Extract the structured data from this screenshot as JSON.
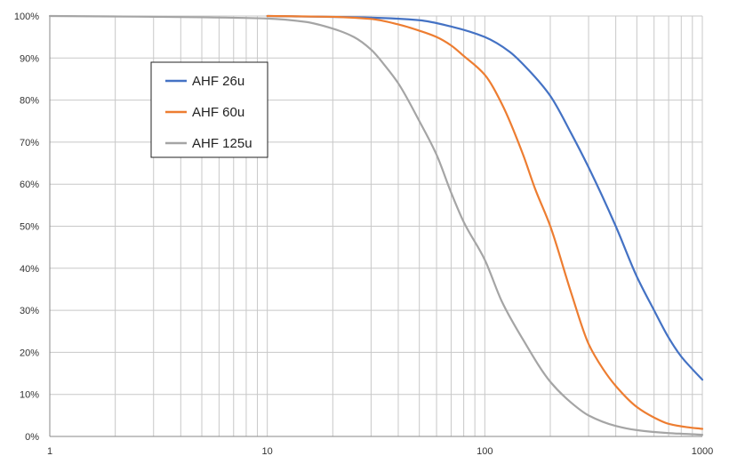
{
  "chart_data": {
    "type": "line",
    "title": "",
    "xlabel": "",
    "ylabel": "",
    "x_scale": "log",
    "xlim": [
      1,
      1000
    ],
    "ylim": [
      0,
      100
    ],
    "grid": true,
    "legend_position": "top-left",
    "x_ticks": [
      {
        "value": 1,
        "label": "1"
      },
      {
        "value": 10,
        "label": "10"
      },
      {
        "value": 100,
        "label": "100"
      },
      {
        "value": 1000,
        "label": "1000"
      }
    ],
    "y_ticks": [
      {
        "value": 0,
        "label": "0%"
      },
      {
        "value": 10,
        "label": "10%"
      },
      {
        "value": 20,
        "label": "20%"
      },
      {
        "value": 30,
        "label": "30%"
      },
      {
        "value": 40,
        "label": "40%"
      },
      {
        "value": 50,
        "label": "50%"
      },
      {
        "value": 60,
        "label": "60%"
      },
      {
        "value": 70,
        "label": "70%"
      },
      {
        "value": 80,
        "label": "80%"
      },
      {
        "value": 90,
        "label": "90%"
      },
      {
        "value": 100,
        "label": "100%"
      }
    ],
    "series": [
      {
        "name": "AHF 26u",
        "color": "#4472C4",
        "points": [
          [
            10,
            100
          ],
          [
            30,
            99.6
          ],
          [
            50,
            99
          ],
          [
            70,
            97.5
          ],
          [
            100,
            95
          ],
          [
            130,
            91.5
          ],
          [
            160,
            87
          ],
          [
            200,
            81
          ],
          [
            250,
            72
          ],
          [
            300,
            64
          ],
          [
            400,
            50
          ],
          [
            500,
            38
          ],
          [
            600,
            30
          ],
          [
            700,
            23.5
          ],
          [
            800,
            19
          ],
          [
            900,
            16
          ],
          [
            1000,
            13.5
          ]
        ]
      },
      {
        "name": "AHF 60u",
        "color": "#ED7D31",
        "points": [
          [
            10,
            100
          ],
          [
            20,
            99.8
          ],
          [
            30,
            99.3
          ],
          [
            40,
            98
          ],
          [
            50,
            96.5
          ],
          [
            60,
            95
          ],
          [
            70,
            93
          ],
          [
            80,
            90.5
          ],
          [
            100,
            86
          ],
          [
            120,
            79
          ],
          [
            150,
            67
          ],
          [
            170,
            59
          ],
          [
            200,
            50
          ],
          [
            250,
            34
          ],
          [
            300,
            22
          ],
          [
            350,
            16
          ],
          [
            400,
            12
          ],
          [
            500,
            7
          ],
          [
            600,
            4.5
          ],
          [
            700,
            3
          ],
          [
            850,
            2.2
          ],
          [
            1000,
            1.8
          ]
        ]
      },
      {
        "name": "AHF 125u",
        "color": "#A5A5A5",
        "points": [
          [
            1,
            100
          ],
          [
            5,
            99.7
          ],
          [
            10,
            99.4
          ],
          [
            15,
            98.6
          ],
          [
            20,
            97
          ],
          [
            25,
            95
          ],
          [
            30,
            92
          ],
          [
            35,
            88
          ],
          [
            40,
            84
          ],
          [
            50,
            75
          ],
          [
            60,
            67
          ],
          [
            70,
            58
          ],
          [
            80,
            51
          ],
          [
            100,
            42
          ],
          [
            120,
            32
          ],
          [
            150,
            23
          ],
          [
            200,
            13
          ],
          [
            250,
            8
          ],
          [
            300,
            5
          ],
          [
            400,
            2.5
          ],
          [
            500,
            1.5
          ],
          [
            700,
            0.8
          ],
          [
            1000,
            0.4
          ]
        ]
      }
    ]
  }
}
